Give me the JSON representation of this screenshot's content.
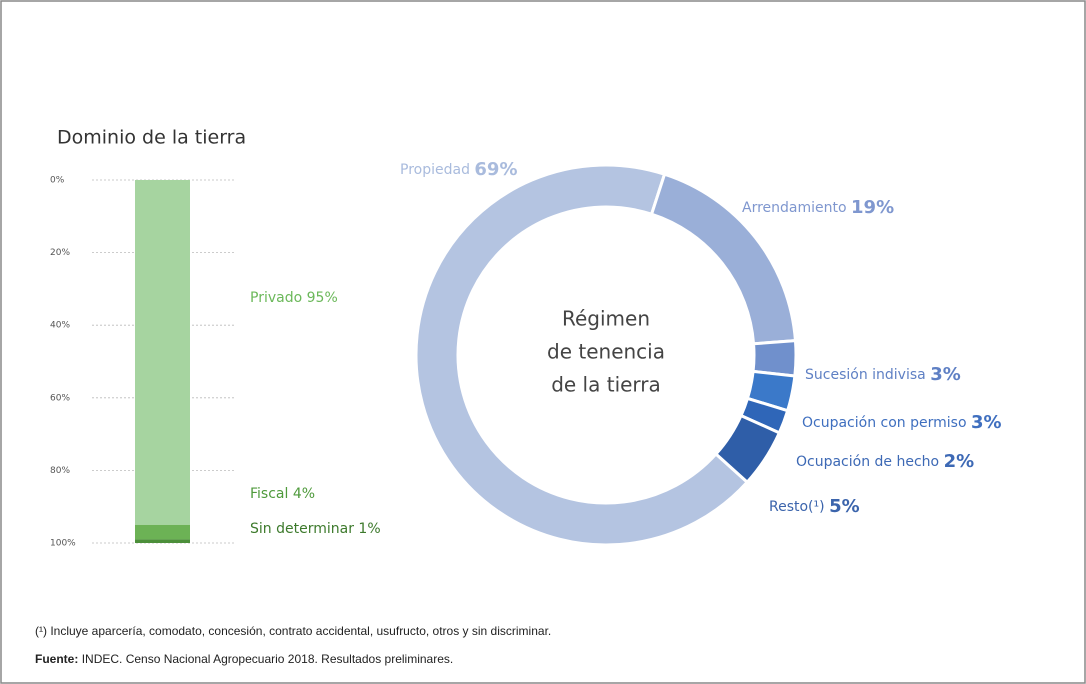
{
  "chart_data": [
    {
      "type": "stacked_bar",
      "title": "Dominio de la tierra",
      "categories": [
        null
      ],
      "series": [
        {
          "name": "Privado",
          "color": "#a6d4a0",
          "values": [
            95
          ],
          "value_labels": [
            "95%"
          ]
        },
        {
          "name": "Fiscal",
          "color": "#6cb255",
          "values": [
            4
          ],
          "value_labels": [
            "4%"
          ]
        },
        {
          "name": "Sin determinar",
          "color": "#4c8f3a",
          "values": [
            1
          ],
          "value_labels": [
            "1%"
          ]
        }
      ],
      "ylim": [
        0,
        100
      ],
      "y_reversed": true,
      "grid": true,
      "yticks": [
        {
          "value": 0,
          "label": "0%"
        },
        {
          "value": 20,
          "label": "20%"
        },
        {
          "value": 40,
          "label": "40%"
        },
        {
          "value": 60,
          "label": "60%"
        },
        {
          "value": 80,
          "label": "80%"
        },
        {
          "value": 100,
          "label": "100%"
        }
      ]
    },
    {
      "type": "donut",
      "title_lines": [
        "Régimen",
        "de tenencia",
        "de la tierra"
      ],
      "categories": [
        "Propiedad",
        "Arrendamiento",
        "Sucesión indivisa",
        "Ocupación con permiso",
        "Ocupación de hecho",
        "Resto(¹)"
      ],
      "values": [
        69,
        19,
        3,
        3,
        2,
        5
      ],
      "value_labels": [
        "69%",
        "19%",
        "3%",
        "3%",
        "2%",
        "5%"
      ],
      "colors": [
        "#b4c4e1",
        "#9aafd8",
        "#7090cc",
        "#3b79c9",
        "#2f66b8",
        "#2f5ea8"
      ]
    }
  ],
  "footnote": "(¹) Incluye aparcería, comodato, concesión, contrato accidental, usufructo, otros y sin discriminar.",
  "source_label": "Fuente:",
  "source": "INDEC. Censo Nacional Agropecuario 2018. Resultados preliminares."
}
